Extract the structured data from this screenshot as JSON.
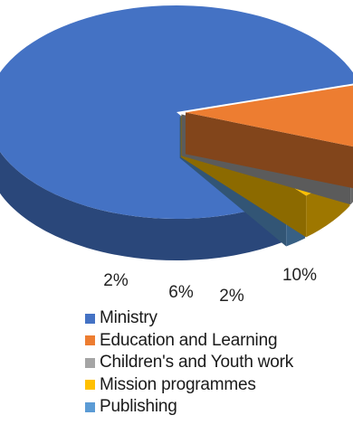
{
  "chart_data": {
    "type": "pie",
    "title": "",
    "categories": [
      "Ministry",
      "Education and Learning",
      "Children's and Youth work",
      "Mission programmes",
      "Publishing"
    ],
    "values": [
      80,
      10,
      2,
      6,
      2
    ],
    "data_labels": [
      "",
      "10%",
      "2%",
      "6%",
      "2%"
    ],
    "colors": [
      "#4472C4",
      "#ED7D31",
      "#A5A5A5",
      "#FFC000",
      "#5B9BD5"
    ],
    "legend": {
      "placement": "bottom",
      "items": [
        {
          "label": "Ministry",
          "color": "#4472C4"
        },
        {
          "label": "Education and Learning",
          "color": "#ED7D31"
        },
        {
          "label": "Children's and Youth work",
          "color": "#A5A5A5"
        },
        {
          "label": "Mission programmes",
          "color": "#FFC000"
        },
        {
          "label": "Publishing",
          "color": "#5B9BD5"
        }
      ]
    },
    "style": "3d-exploded"
  }
}
